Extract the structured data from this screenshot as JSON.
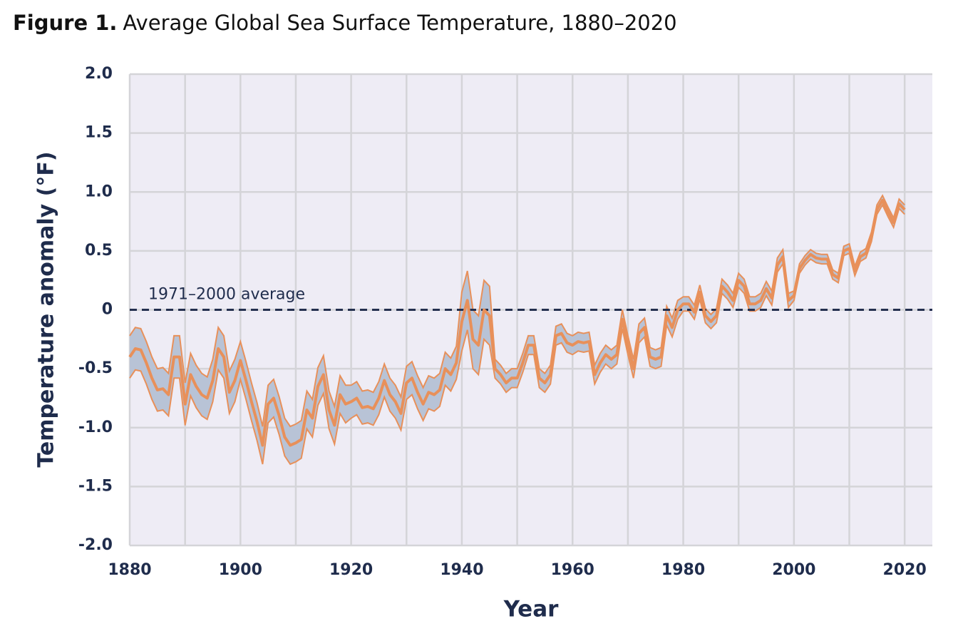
{
  "chart_data": {
    "type": "line",
    "title_prefix": "Figure 1.",
    "title": "Average Global Sea Surface Temperature, 1880–2020",
    "xlabel": "Year",
    "ylabel": "Temperature anomaly (°F)",
    "reference_line": {
      "value": 0,
      "label": "1971–2000 average",
      "color": "#24304f"
    },
    "line_color": "#e8905a",
    "band_color": "#b8c3d6",
    "plot_background": "#eeecf5",
    "grid": true,
    "xlim": [
      1880,
      2025
    ],
    "xticks": [
      1880,
      1900,
      1920,
      1940,
      1960,
      1980,
      2000,
      2020
    ],
    "xminor_ticks": [
      1890,
      1910,
      1930,
      1950,
      1970,
      1990,
      2010
    ],
    "ylim": [
      -2,
      2
    ],
    "yticks": [
      {
        "value": 2,
        "label": "2.0"
      },
      1.5,
      {
        "value": 1,
        "label": "1.0"
      },
      0.5,
      0,
      -0.5,
      {
        "value": -1,
        "label": "-1.0"
      },
      -1.5,
      {
        "value": -2,
        "label": "-2.0"
      }
    ],
    "x_start": 1880,
    "values": [
      -0.4,
      -0.33,
      -0.34,
      -0.45,
      -0.58,
      -0.68,
      -0.67,
      -0.72,
      -0.4,
      -0.4,
      -0.8,
      -0.55,
      -0.65,
      -0.72,
      -0.75,
      -0.6,
      -0.33,
      -0.4,
      -0.7,
      -0.6,
      -0.43,
      -0.6,
      -0.78,
      -0.95,
      -1.15,
      -0.8,
      -0.75,
      -0.9,
      -1.08,
      -1.15,
      -1.13,
      -1.1,
      -0.85,
      -0.92,
      -0.65,
      -0.55,
      -0.85,
      -0.98,
      -0.72,
      -0.8,
      -0.78,
      -0.75,
      -0.83,
      -0.82,
      -0.84,
      -0.75,
      -0.6,
      -0.72,
      -0.78,
      -0.88,
      -0.62,
      -0.58,
      -0.7,
      -0.8,
      -0.7,
      -0.72,
      -0.68,
      -0.5,
      -0.55,
      -0.45,
      -0.1,
      0.08,
      -0.25,
      -0.3,
      0.0,
      -0.05,
      -0.5,
      -0.55,
      -0.62,
      -0.58,
      -0.58,
      -0.45,
      -0.3,
      -0.3,
      -0.58,
      -0.62,
      -0.55,
      -0.22,
      -0.2,
      -0.28,
      -0.3,
      -0.27,
      -0.28,
      -0.27,
      -0.55,
      -0.45,
      -0.38,
      -0.42,
      -0.38,
      -0.08,
      -0.3,
      -0.5,
      -0.2,
      -0.15,
      -0.4,
      -0.42,
      -0.4,
      -0.05,
      -0.15,
      0.0,
      0.05,
      0.05,
      -0.02,
      0.15,
      -0.05,
      -0.1,
      -0.05,
      0.2,
      0.15,
      0.08,
      0.25,
      0.2,
      0.05,
      0.05,
      0.08,
      0.18,
      0.1,
      0.38,
      0.45,
      0.08,
      0.12,
      0.35,
      0.42,
      0.47,
      0.44,
      0.43,
      0.43,
      0.3,
      0.27,
      0.5,
      0.52,
      0.33,
      0.45,
      0.48,
      0.62,
      0.85,
      0.93,
      0.83,
      0.74,
      0.9,
      0.85
    ],
    "error": [
      0.18,
      0.18,
      0.18,
      0.18,
      0.18,
      0.18,
      0.18,
      0.18,
      0.18,
      0.18,
      0.18,
      0.18,
      0.18,
      0.18,
      0.18,
      0.18,
      0.18,
      0.18,
      0.18,
      0.18,
      0.16,
      0.16,
      0.16,
      0.16,
      0.16,
      0.16,
      0.16,
      0.16,
      0.16,
      0.16,
      0.16,
      0.16,
      0.16,
      0.16,
      0.16,
      0.16,
      0.16,
      0.16,
      0.16,
      0.16,
      0.14,
      0.14,
      0.14,
      0.14,
      0.14,
      0.14,
      0.14,
      0.14,
      0.14,
      0.14,
      0.14,
      0.14,
      0.14,
      0.14,
      0.14,
      0.14,
      0.14,
      0.14,
      0.14,
      0.14,
      0.25,
      0.25,
      0.25,
      0.25,
      0.25,
      0.25,
      0.08,
      0.08,
      0.08,
      0.08,
      0.08,
      0.08,
      0.08,
      0.08,
      0.08,
      0.08,
      0.08,
      0.08,
      0.08,
      0.08,
      0.08,
      0.08,
      0.08,
      0.08,
      0.08,
      0.08,
      0.08,
      0.08,
      0.08,
      0.08,
      0.08,
      0.08,
      0.08,
      0.08,
      0.08,
      0.08,
      0.08,
      0.08,
      0.08,
      0.08,
      0.06,
      0.06,
      0.06,
      0.06,
      0.06,
      0.06,
      0.06,
      0.06,
      0.06,
      0.06,
      0.06,
      0.06,
      0.06,
      0.06,
      0.06,
      0.06,
      0.06,
      0.06,
      0.06,
      0.06,
      0.04,
      0.04,
      0.04,
      0.04,
      0.04,
      0.04,
      0.04,
      0.04,
      0.04,
      0.04,
      0.04,
      0.04,
      0.04,
      0.04,
      0.04,
      0.04,
      0.04,
      0.04,
      0.04,
      0.04,
      0.04
    ]
  }
}
